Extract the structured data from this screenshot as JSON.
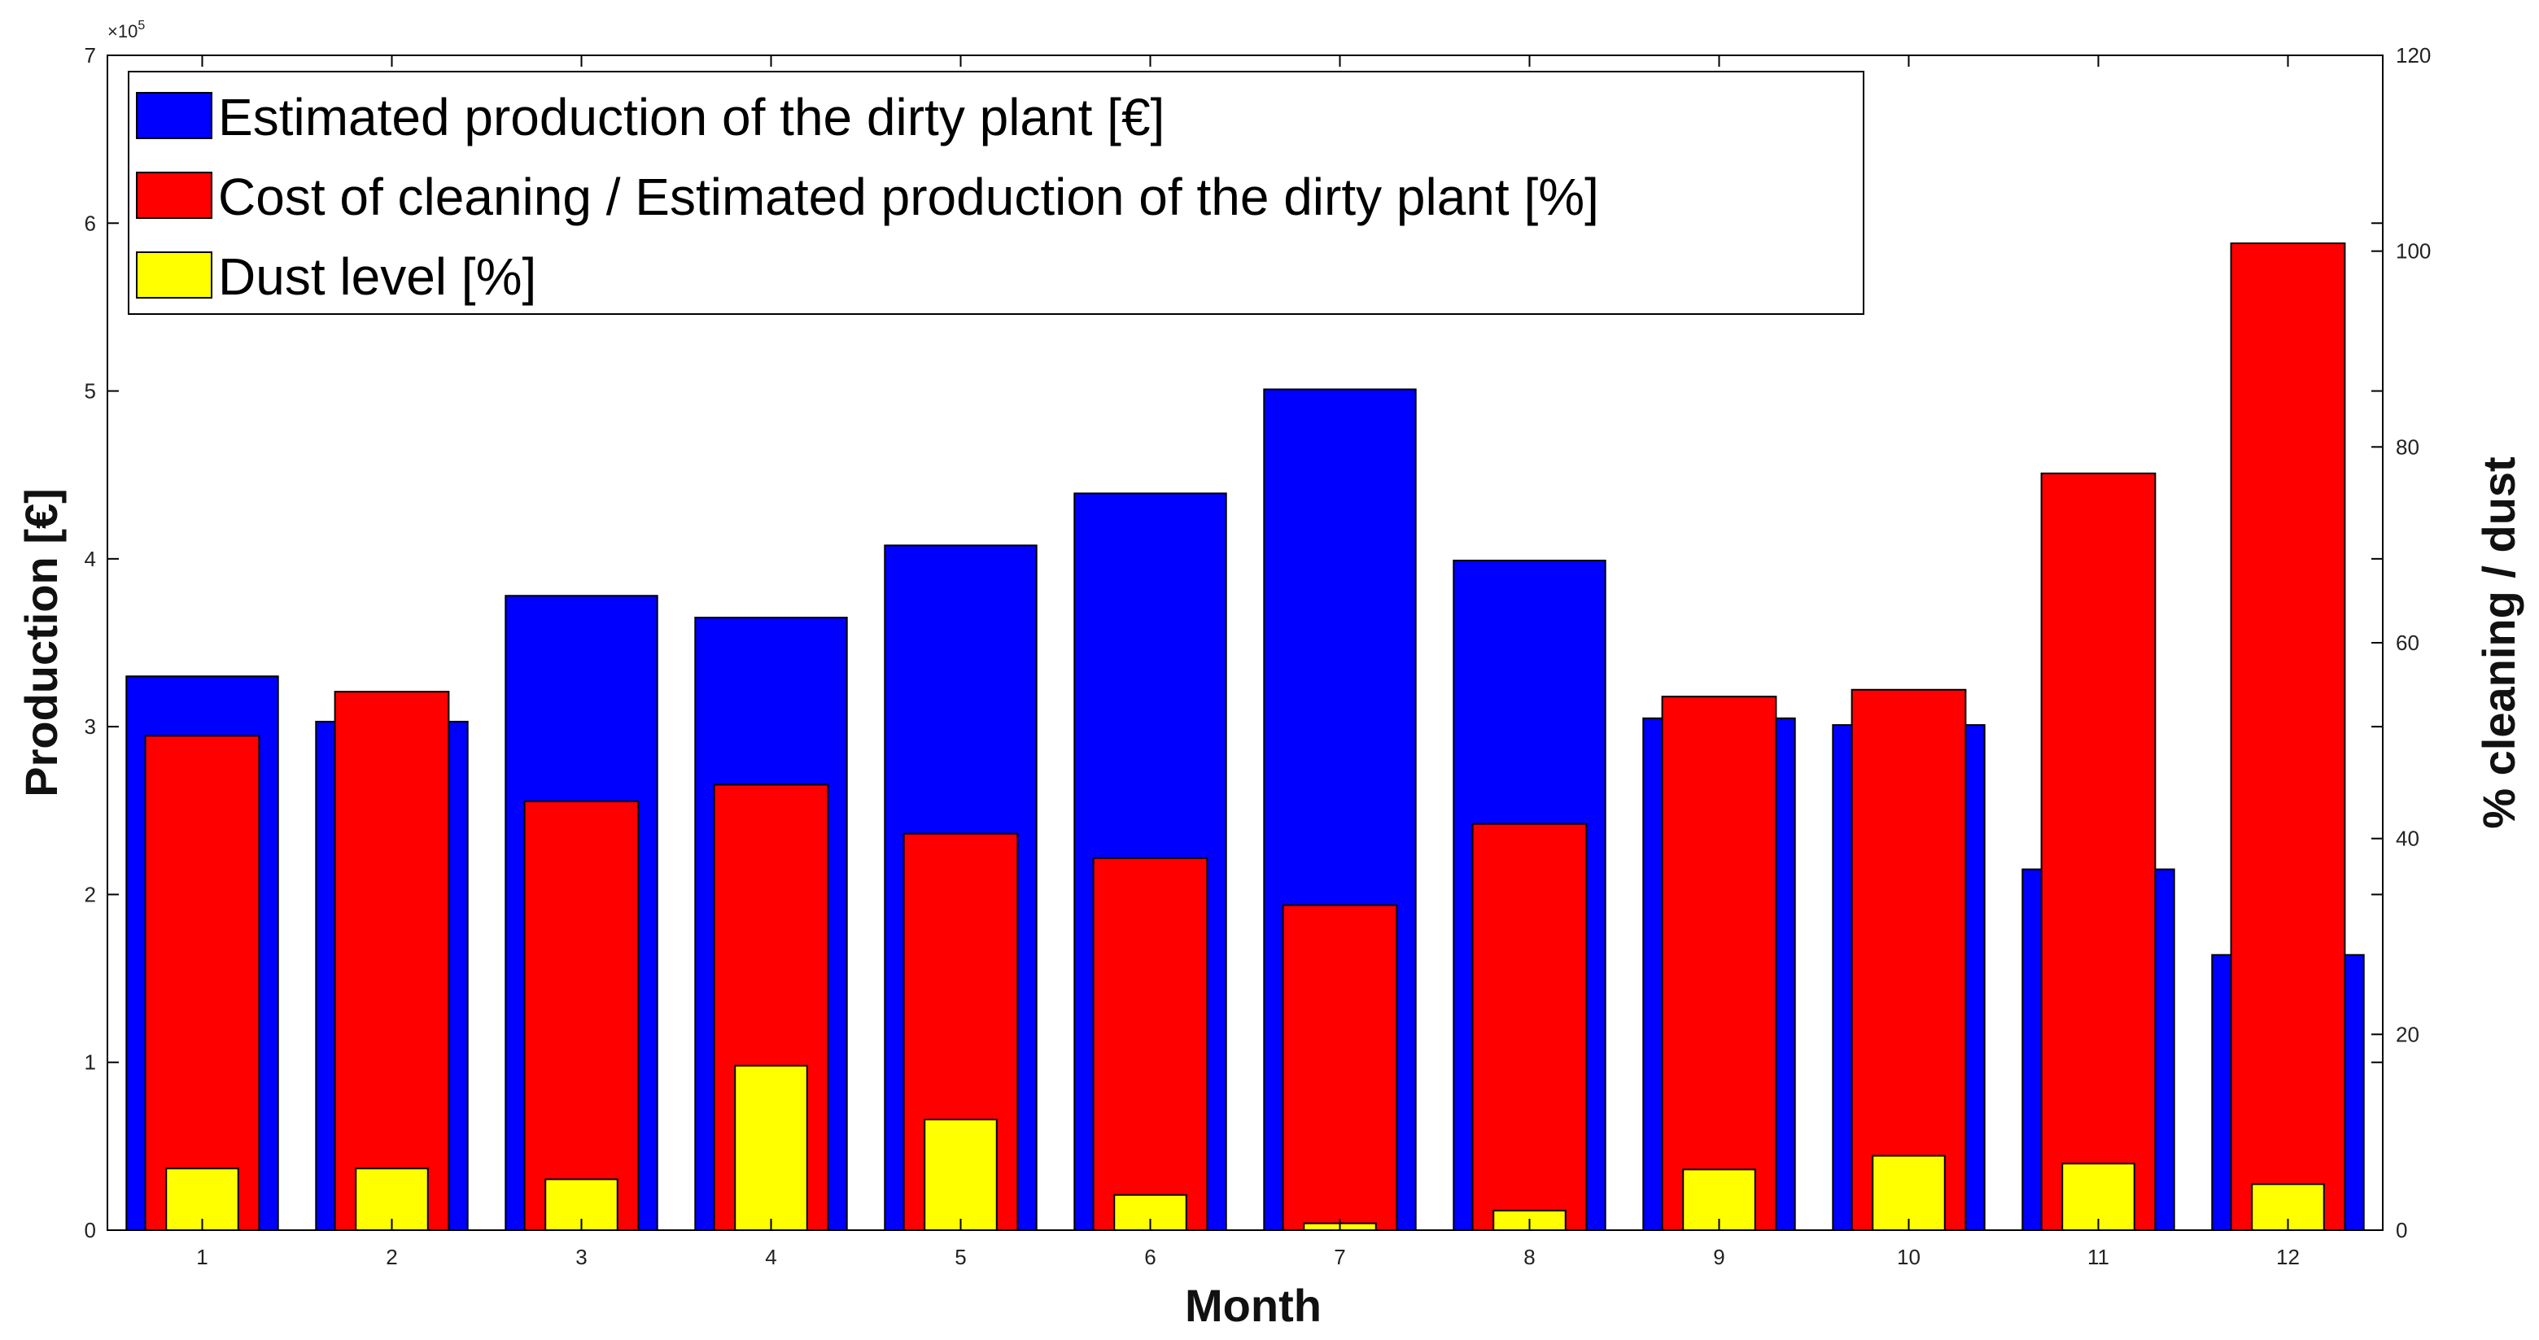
{
  "chart_data": {
    "type": "bar",
    "title": "",
    "xlabel": "Month",
    "ylabel": "Production [€]",
    "y2label": "% cleaning / dust",
    "categories": [
      "1",
      "2",
      "3",
      "4",
      "5",
      "6",
      "7",
      "8",
      "9",
      "10",
      "11",
      "12"
    ],
    "left_axis": {
      "ylim": [
        0,
        7
      ],
      "ticks": [
        "0",
        "1",
        "2",
        "3",
        "4",
        "5",
        "6",
        "7"
      ],
      "exponent_label": "×10",
      "exponent_power": "5"
    },
    "right_axis": {
      "ylim": [
        0,
        120
      ],
      "ticks": [
        "0",
        "20",
        "40",
        "60",
        "80",
        "100",
        "120"
      ]
    },
    "series": [
      {
        "name": "Estimated production of the dirty plant [€]",
        "axis": "left",
        "color": "#0000ff",
        "values": [
          3.3,
          3.03,
          3.78,
          3.65,
          4.08,
          4.39,
          5.01,
          3.99,
          3.05,
          3.01,
          2.15,
          1.64
        ]
      },
      {
        "name": "Cost of cleaning / Estimated production of the dirty plant [%]",
        "axis": "right",
        "color": "#ff0000",
        "values": [
          50.5,
          55.0,
          43.8,
          45.5,
          40.5,
          38.0,
          33.2,
          41.5,
          54.5,
          55.2,
          77.3,
          100.8
        ]
      },
      {
        "name": "Dust level [%]",
        "axis": "right",
        "color": "#ffff00",
        "values": [
          6.3,
          6.3,
          5.2,
          16.8,
          11.3,
          3.6,
          0.7,
          2.0,
          6.2,
          7.6,
          6.8,
          4.7
        ]
      }
    ],
    "legend": {
      "position": "top-left",
      "entries": [
        "Estimated production of the dirty plant [€]",
        "Cost of cleaning / Estimated production of the dirty plant [%]",
        "Dust level [%]"
      ]
    },
    "grid": false
  }
}
